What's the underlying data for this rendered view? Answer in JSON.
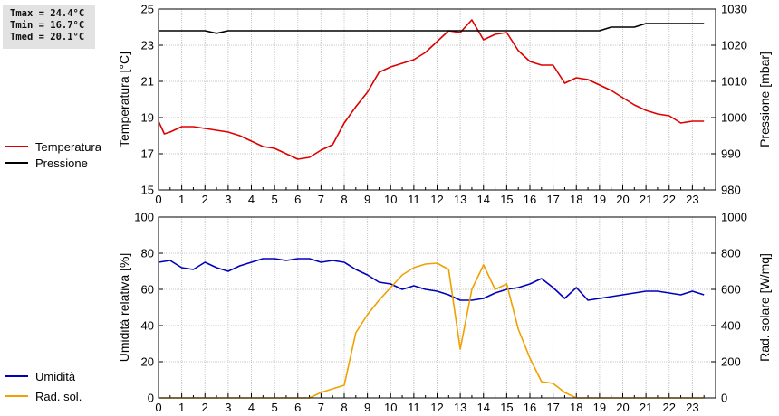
{
  "stats": {
    "tmax": "Tmax = 24.4°C",
    "tmin": "Tmin = 16.7°C",
    "tmed": "Tmed = 20.1°C"
  },
  "legend_top": [
    {
      "label": "Temperatura",
      "color": "#dd0000"
    },
    {
      "label": "Pressione",
      "color": "#000000"
    }
  ],
  "legend_bottom": [
    {
      "label": "Umidità",
      "color": "#0000bb"
    },
    {
      "label": "Rad. sol.",
      "color": "#f0a000"
    }
  ],
  "chart_data": [
    {
      "type": "line",
      "ylabel": "Temperatura [°C]",
      "y2label": "Pressione [mbar]",
      "xlim": [
        0,
        24
      ],
      "ylim": [
        15,
        25
      ],
      "y2lim": [
        980,
        1030
      ],
      "xticks": [
        "0",
        "1",
        "2",
        "3",
        "4",
        "5",
        "6",
        "7",
        "8",
        "9",
        "10",
        "11",
        "12",
        "13",
        "14",
        "15",
        "16",
        "17",
        "18",
        "19",
        "20",
        "21",
        "22",
        "23"
      ],
      "yticks": [
        "15",
        "17",
        "19",
        "21",
        "23",
        "25"
      ],
      "y2ticks": [
        "980",
        "990",
        "1000",
        "1010",
        "1020",
        "1030"
      ],
      "grid": true,
      "series": [
        {
          "name": "Temperatura",
          "axis": "left",
          "color": "#dd0000",
          "x": [
            0,
            0.25,
            0.5,
            1,
            1.5,
            2,
            2.5,
            3,
            3.5,
            4,
            4.5,
            5,
            5.5,
            6,
            6.5,
            7,
            7.5,
            8,
            8.5,
            9,
            9.5,
            10,
            10.5,
            11,
            11.5,
            12,
            12.5,
            13,
            13.5,
            14,
            14.5,
            15,
            15.5,
            16,
            16.5,
            17,
            17.5,
            18,
            18.5,
            19,
            19.5,
            20,
            20.5,
            21,
            21.5,
            22,
            22.5,
            23,
            23.5
          ],
          "y": [
            18.8,
            18.1,
            18.2,
            18.5,
            18.5,
            18.4,
            18.3,
            18.2,
            18.0,
            17.7,
            17.4,
            17.3,
            17.0,
            16.7,
            16.8,
            17.2,
            17.5,
            18.7,
            19.6,
            20.4,
            21.5,
            21.8,
            22.0,
            22.2,
            22.6,
            23.2,
            23.8,
            23.7,
            24.4,
            23.3,
            23.6,
            23.7,
            22.7,
            22.1,
            21.9,
            21.9,
            20.9,
            21.2,
            21.1,
            20.8,
            20.5,
            20.1,
            19.7,
            19.4,
            19.2,
            19.1,
            18.7,
            18.8,
            18.8
          ]
        },
        {
          "name": "Pressione",
          "axis": "right",
          "color": "#000000",
          "x": [
            0,
            2,
            2.5,
            3,
            4,
            5,
            6,
            7,
            8,
            9,
            10,
            11,
            12,
            13,
            14,
            15,
            16,
            17,
            18,
            19,
            19.5,
            20,
            20.5,
            21,
            21.5,
            22,
            23,
            23.5
          ],
          "y": [
            1024,
            1024,
            1023.3,
            1024,
            1024,
            1024,
            1024,
            1024,
            1024,
            1024,
            1024,
            1024,
            1024,
            1024,
            1024,
            1024,
            1024,
            1024,
            1024,
            1024,
            1025,
            1025,
            1025,
            1026,
            1026,
            1026,
            1026,
            1026
          ]
        }
      ]
    },
    {
      "type": "line",
      "ylabel": "Umidità relativa [%]",
      "y2label": "Rad. solare [W/mq]",
      "xlim": [
        0,
        24
      ],
      "ylim": [
        0,
        100
      ],
      "y2lim": [
        0,
        1000
      ],
      "xticks": [
        "0",
        "1",
        "2",
        "3",
        "4",
        "5",
        "6",
        "7",
        "8",
        "9",
        "10",
        "11",
        "12",
        "13",
        "14",
        "15",
        "16",
        "17",
        "18",
        "19",
        "20",
        "21",
        "22",
        "23"
      ],
      "yticks": [
        "0",
        "20",
        "40",
        "60",
        "80",
        "100"
      ],
      "y2ticks": [
        "0",
        "200",
        "400",
        "600",
        "800",
        "1000"
      ],
      "grid": true,
      "series": [
        {
          "name": "Umidità",
          "axis": "left",
          "color": "#0000bb",
          "x": [
            0,
            0.5,
            1,
            1.5,
            2,
            2.5,
            3,
            3.5,
            4,
            4.5,
            5,
            5.5,
            6,
            6.5,
            7,
            7.5,
            8,
            8.5,
            9,
            9.5,
            10,
            10.5,
            11,
            11.5,
            12,
            12.5,
            13,
            13.5,
            14,
            14.5,
            15,
            15.5,
            16,
            16.5,
            17,
            17.5,
            18,
            18.5,
            19,
            19.5,
            20,
            20.5,
            21,
            21.5,
            22,
            22.5,
            23,
            23.5
          ],
          "y": [
            75,
            76,
            72,
            71,
            75,
            72,
            70,
            73,
            75,
            77,
            77,
            76,
            77,
            77,
            75,
            76,
            75,
            71,
            68,
            64,
            63,
            60,
            62,
            60,
            59,
            57,
            54,
            54,
            55,
            58,
            60,
            61,
            63,
            66,
            61,
            55,
            61,
            54,
            55,
            56,
            57,
            58,
            59,
            59,
            58,
            57,
            59,
            57
          ]
        },
        {
          "name": "Rad. sol.",
          "axis": "right",
          "color": "#f0a000",
          "x": [
            0,
            1,
            2,
            3,
            4,
            5,
            6,
            6.5,
            7,
            7.5,
            8,
            8.5,
            9,
            9.5,
            10,
            10.5,
            11,
            11.5,
            12,
            12.5,
            13,
            13.5,
            14,
            14.5,
            15,
            15.5,
            16,
            16.5,
            17,
            17.5,
            18,
            19,
            20,
            21,
            22,
            23,
            23.5
          ],
          "y": [
            0,
            0,
            0,
            0,
            0,
            0,
            0,
            0,
            30,
            50,
            70,
            360,
            460,
            540,
            610,
            680,
            720,
            740,
            745,
            710,
            270,
            600,
            735,
            600,
            630,
            380,
            220,
            90,
            80,
            30,
            0,
            0,
            0,
            0,
            0,
            0,
            0
          ]
        }
      ]
    }
  ]
}
